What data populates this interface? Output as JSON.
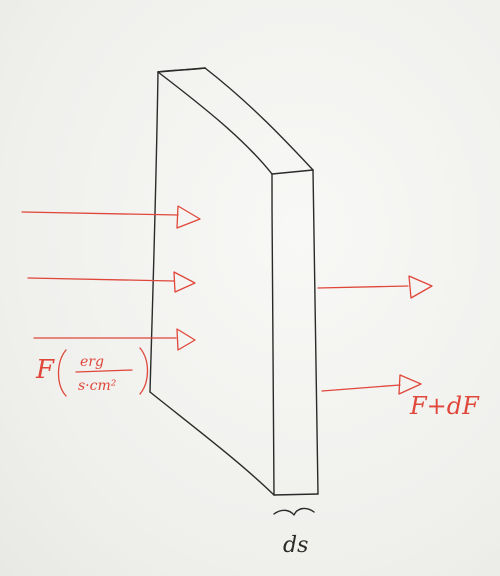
{
  "diagram": {
    "incident_flux_symbol": "F",
    "unit_numerator": "erg",
    "unit_denominator": "s·cm²",
    "outgoing_flux_label": "F+dF",
    "thickness_label": "ds",
    "colors": {
      "ink": "#2a2a2a",
      "annotation": "#e0463a",
      "paper": "#f3f3f1"
    }
  }
}
